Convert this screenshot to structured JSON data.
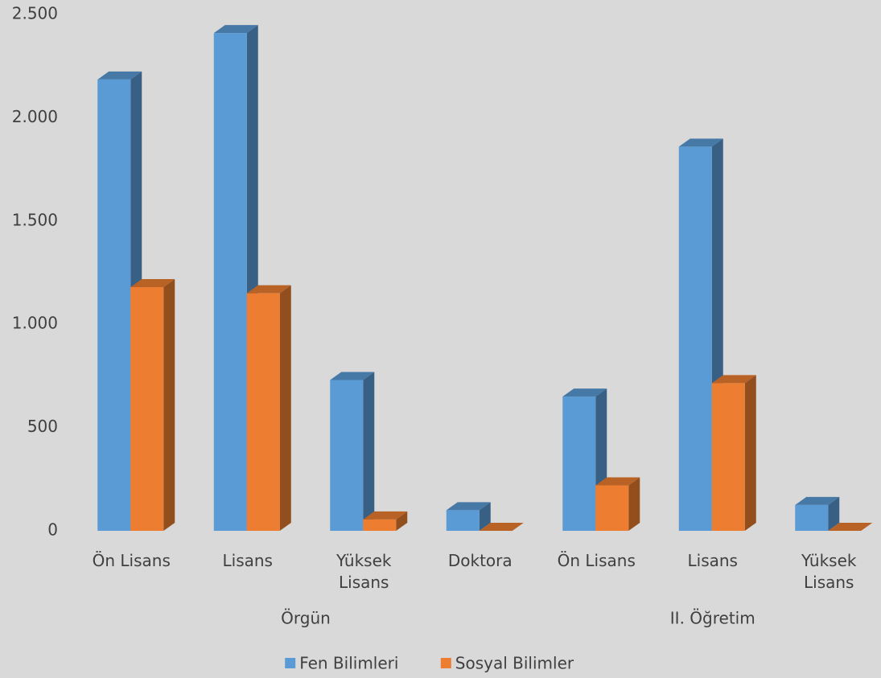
{
  "chart_data": {
    "type": "bar3d",
    "categories": [
      "Ön Lisans",
      "Lisans",
      "Yüksek Lisans",
      "Doktora",
      "Ön Lisans",
      "Lisans",
      "Yüksek Lisans"
    ],
    "groups": [
      {
        "label": "Örgün",
        "count": 4
      },
      {
        "label": "II. Öğretim",
        "count": 3
      }
    ],
    "series": [
      {
        "name": "Fen Bilimleri",
        "color": "#5b9bd5",
        "values": [
          2185,
          2410,
          730,
          100,
          650,
          1860,
          125
        ]
      },
      {
        "name": "Sosyal Bilimler",
        "color": "#ed7d31",
        "values": [
          1180,
          1150,
          55,
          0,
          220,
          715,
          0
        ]
      }
    ],
    "ylim": [
      0,
      2500
    ],
    "yticks": [
      0,
      500,
      {
        "value": 1000,
        "label": "1.000"
      },
      {
        "value": 1500,
        "label": "1.500"
      },
      {
        "value": 2000,
        "label": "2.000"
      },
      {
        "value": 2500,
        "label": "2.500"
      }
    ],
    "grid": false,
    "legend": "bottom"
  }
}
